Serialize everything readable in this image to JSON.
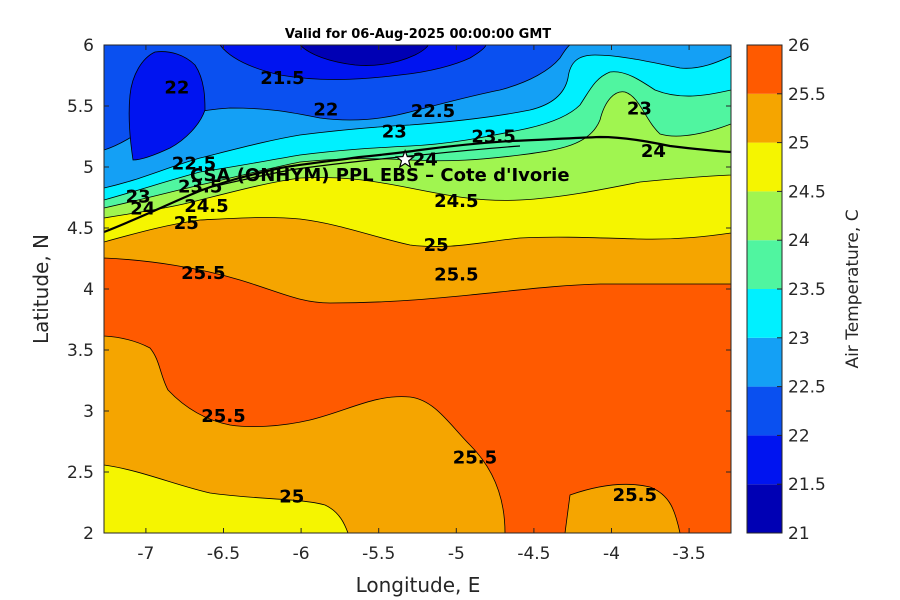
{
  "chart_data": {
    "type": "heatmap",
    "title": "Valid for 06-Aug-2025 00:00:00 GMT",
    "xlabel": "Longitude, E",
    "ylabel": "Latitude, N",
    "xlim": [
      -7.27,
      -3.23
    ],
    "ylim": [
      2,
      6
    ],
    "x_ticks": [
      -7,
      -6.5,
      -6,
      -5.5,
      -5,
      -4.5,
      -4,
      -3.5
    ],
    "x_tick_labels": [
      "-7",
      "-6.5",
      "-6",
      "-5.5",
      "-5",
      "-4.5",
      "-4",
      "-3.5"
    ],
    "y_ticks": [
      2,
      2.5,
      3,
      3.5,
      4,
      4.5,
      5,
      5.5,
      6
    ],
    "y_tick_labels": [
      "2",
      "2.5",
      "3",
      "3.5",
      "4",
      "4.5",
      "5",
      "5.5",
      "6"
    ],
    "colorbar": {
      "label": "Air Temperature, C",
      "range": [
        21,
        26
      ],
      "levels": [
        21,
        21.5,
        22,
        22.5,
        23,
        23.5,
        24,
        24.5,
        25,
        25.5,
        26
      ],
      "tick_labels": [
        "21",
        "21.5",
        "22",
        "22.5",
        "23",
        "23.5",
        "24",
        "24.5",
        "25",
        "25.5",
        "26"
      ],
      "colors": [
        "#0000b4",
        "#0014f0",
        "#0a50f0",
        "#14a0f5",
        "#00f0ff",
        "#50f5a0",
        "#a0f550",
        "#f5f500",
        "#f5a500",
        "#ff5a00",
        "#ff0000"
      ]
    },
    "site": {
      "label": "CSA (ONHYM) PPL EBS  – Cote d'Ivorie",
      "lon": -5.33,
      "lat": 5.06,
      "marker": "star"
    },
    "contour_labels": [
      {
        "text": "21.5",
        "lon": -6.12,
        "lat": 5.73
      },
      {
        "text": "22",
        "lon": -6.8,
        "lat": 5.65
      },
      {
        "text": "22",
        "lon": -5.84,
        "lat": 5.47
      },
      {
        "text": "22.5",
        "lon": -5.15,
        "lat": 5.46
      },
      {
        "text": "23",
        "lon": -3.82,
        "lat": 5.48
      },
      {
        "text": "23",
        "lon": -5.4,
        "lat": 5.29
      },
      {
        "text": "23.5",
        "lon": -4.76,
        "lat": 5.25
      },
      {
        "text": "24",
        "lon": -5.2,
        "lat": 5.06
      },
      {
        "text": "24",
        "lon": -3.73,
        "lat": 5.13
      },
      {
        "text": "22.5",
        "lon": -6.69,
        "lat": 5.03
      },
      {
        "text": "23",
        "lon": -7.05,
        "lat": 4.76
      },
      {
        "text": "23.5",
        "lon": -6.65,
        "lat": 4.84
      },
      {
        "text": "24",
        "lon": -7.02,
        "lat": 4.66
      },
      {
        "text": "24.5",
        "lon": -6.61,
        "lat": 4.68
      },
      {
        "text": "25",
        "lon": -6.74,
        "lat": 4.54
      },
      {
        "text": "24.5",
        "lon": -5.0,
        "lat": 4.72
      },
      {
        "text": "25",
        "lon": -5.13,
        "lat": 4.36
      },
      {
        "text": "25.5",
        "lon": -6.63,
        "lat": 4.13
      },
      {
        "text": "25.5",
        "lon": -5.0,
        "lat": 4.12
      },
      {
        "text": "25.5",
        "lon": -6.5,
        "lat": 2.96
      },
      {
        "text": "25.5",
        "lon": -4.88,
        "lat": 2.62
      },
      {
        "text": "25.5",
        "lon": -3.85,
        "lat": 2.31
      },
      {
        "text": "25",
        "lon": -6.06,
        "lat": 2.3
      }
    ]
  }
}
